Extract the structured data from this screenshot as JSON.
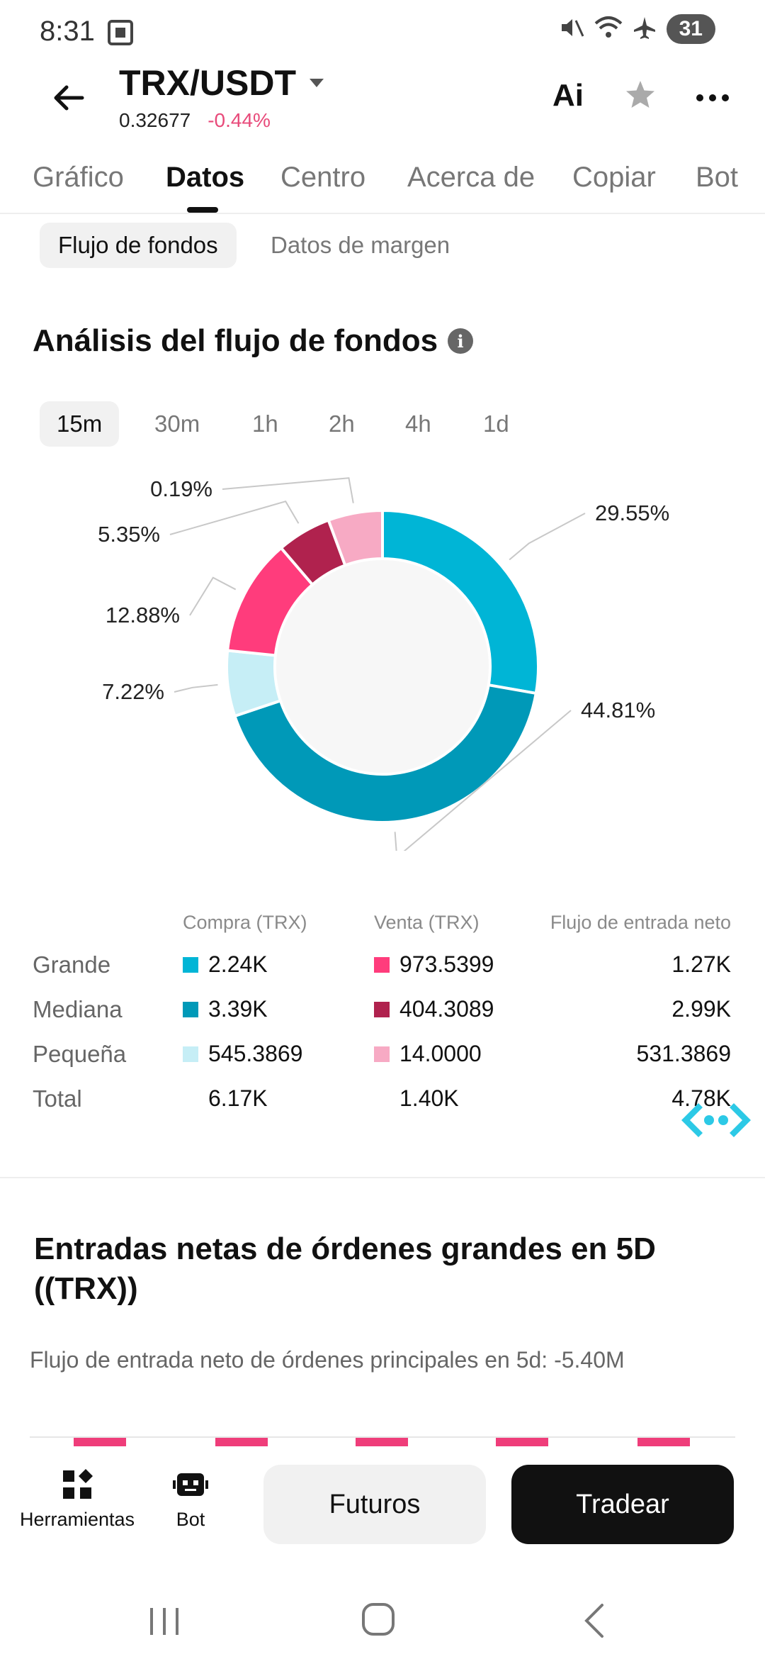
{
  "status_bar": {
    "time": "8:31",
    "battery": "31"
  },
  "header": {
    "pair": "TRX/USDT",
    "price": "0.32677",
    "change": "-0.44%",
    "ai_label": "Ai"
  },
  "tabs": [
    {
      "label": "Gráfico"
    },
    {
      "label": "Datos"
    },
    {
      "label": "Centro"
    },
    {
      "label": "Acerca de"
    },
    {
      "label": "Copiar"
    },
    {
      "label": "Bot"
    }
  ],
  "subtabs": [
    {
      "label": "Flujo de fondos"
    },
    {
      "label": "Datos de margen"
    }
  ],
  "section1": {
    "title": "Análisis del flujo de fondos"
  },
  "intervals": [
    {
      "label": "15m"
    },
    {
      "label": "30m"
    },
    {
      "label": "1h"
    },
    {
      "label": "2h"
    },
    {
      "label": "4h"
    },
    {
      "label": "1d"
    }
  ],
  "chart_data": {
    "type": "pie",
    "donut": true,
    "slices": [
      {
        "label": "29.55%",
        "value": 29.55,
        "color": "#00b5d6"
      },
      {
        "label": "44.81%",
        "value": 44.81,
        "color": "#0099b8"
      },
      {
        "label": "7.22%",
        "value": 7.22,
        "color": "#c6eef6"
      },
      {
        "label": "12.88%",
        "value": 12.88,
        "color": "#ff3c7c"
      },
      {
        "label": "5.35%",
        "value": 5.35,
        "color": "#b0224e"
      },
      {
        "label": "0.19%",
        "value": 0.19,
        "color": "#f7aac4"
      }
    ]
  },
  "flow_table": {
    "headers": {
      "buy": "Compra (TRX)",
      "sell": "Venta (TRX)",
      "net": "Flujo de entrada neto"
    },
    "rows": [
      {
        "label": "Grande",
        "buy": "2.24K",
        "sell": "973.5399",
        "net": "1.27K",
        "buy_color": "#00b5d6",
        "sell_color": "#ff3c7c"
      },
      {
        "label": "Mediana",
        "buy": "3.39K",
        "sell": "404.3089",
        "net": "2.99K",
        "buy_color": "#0099b8",
        "sell_color": "#b0224e"
      },
      {
        "label": "Pequeña",
        "buy": "545.3869",
        "sell": "14.0000",
        "net": "531.3869",
        "buy_color": "#c6eef6",
        "sell_color": "#f7aac4"
      },
      {
        "label": "Total",
        "buy": "6.17K",
        "sell": "1.40K",
        "net": "4.78K"
      }
    ]
  },
  "section2": {
    "title": "Entradas netas de órdenes grandes en 5D ((TRX))",
    "subtitle": "Flujo de entrada neto de órdenes principales en 5d: -5.40M"
  },
  "bottom_bar": {
    "tools_label": "Herramientas",
    "bot_label": "Bot",
    "futures_label": "Futuros",
    "trade_label": "Tradear"
  }
}
